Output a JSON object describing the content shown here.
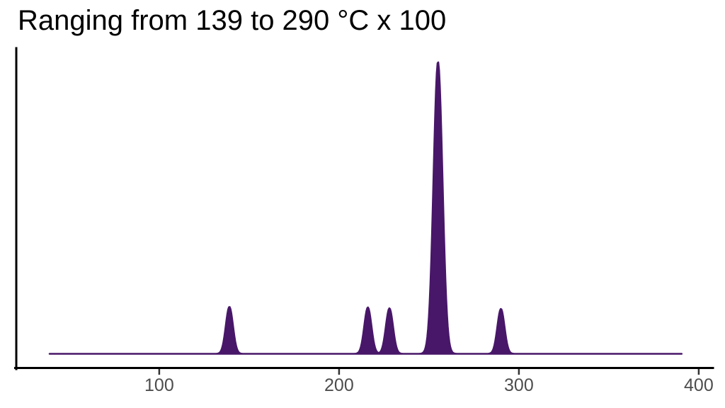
{
  "chart_data": {
    "type": "area",
    "subtype": "density",
    "title": "Ranging from 139 to 290 °C x 100",
    "xlabel": "",
    "ylabel": "",
    "grid": false,
    "legend": "none",
    "xlim": [
      20.5,
      407.9
    ],
    "curve_range": [
      39,
      390.5
    ],
    "x_ticks": [
      {
        "value": 100,
        "label": "100"
      },
      {
        "value": 200,
        "label": "200"
      },
      {
        "value": 300,
        "label": "300"
      },
      {
        "value": 400,
        "label": "400"
      }
    ],
    "peaks": [
      {
        "center": 139,
        "rel_height": 0.161,
        "sigma": 2.0
      },
      {
        "center": 216,
        "rel_height": 0.159,
        "sigma": 2.0
      },
      {
        "center": 228,
        "rel_height": 0.156,
        "sigma": 2.0
      },
      {
        "center": 255,
        "rel_height": 1.0,
        "sigma": 2.5
      },
      {
        "center": 290,
        "rel_height": 0.154,
        "sigma": 2.0
      }
    ],
    "colors": {
      "fill": "#481769",
      "stroke": "#481769",
      "axis": "#000000",
      "tick": "#333333",
      "tick_label": "#4d4d4d",
      "title": "#000000",
      "background": "#ffffff"
    }
  }
}
